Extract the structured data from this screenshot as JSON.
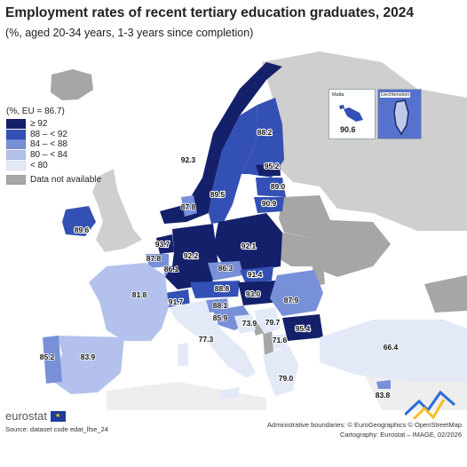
{
  "title": "Employment rates of recent tertiary education graduates, 2024",
  "subtitle": "(%, aged 20-34 years, 1-3 years since completion)",
  "legend": {
    "title": "(%, EU = 86.7)",
    "items": [
      {
        "label": "≥ 92",
        "color": "#15206b"
      },
      {
        "label": "88 – < 92",
        "color": "#3350b5"
      },
      {
        "label": "84 – < 88",
        "color": "#7890d8"
      },
      {
        "label": "80 – < 84",
        "color": "#b3c1ec"
      },
      {
        "label": "< 80",
        "color": "#e4e9f8"
      }
    ],
    "na_label": "Data not available",
    "na_color": "#a6a6a6"
  },
  "insets": {
    "malta": {
      "name": "Malta",
      "value": "90.6"
    },
    "liechtenstein": {
      "name": "Liechtenstein"
    }
  },
  "countries": {
    "norway": "92.3",
    "sweden": "89.5",
    "finland": "88.2",
    "estonia": "95.2",
    "latvia": "89.0",
    "lithuania": "90.9",
    "denmark": "87.8",
    "ireland": "89.6",
    "netherlands": "93.7",
    "belgium": "87.8",
    "luxembourg": "86.1",
    "germany": "92.2",
    "poland": "92.1",
    "czechia": "86.3",
    "slovakia": "91.4",
    "austria": "88.8",
    "hungary": "93.0",
    "switzerland": "91.7",
    "slovenia": "88.1",
    "croatia": "85.9",
    "romania": "87.9",
    "bulgaria": "95.4",
    "france": "81.8",
    "spain": "83.9",
    "portugal": "85.2",
    "italy": "77.3",
    "bosnia": "73.9",
    "serbia": "79.7",
    "north_macedonia": "71.6",
    "greece": "79.0",
    "turkiye": "66.4",
    "cyprus": "83.8",
    "malta_label": "90.6"
  },
  "brand": "eurostat",
  "source": "Source: dataset code edat_lfse_24",
  "credits_line1": "Administrative boundaries: © EuroGeographics © OpenStreetMap",
  "credits_line2": "Cartography: Eurostat – IMAGE, 02/2026"
}
